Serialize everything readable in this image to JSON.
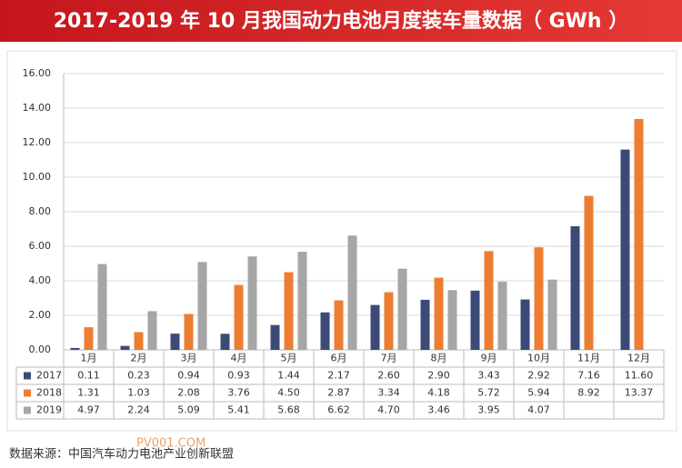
{
  "chart_data": {
    "type": "bar",
    "title": "2017-2019 年 10 月我国动力电池月度装车量数据（ GWh ）",
    "categories": [
      "1月",
      "2月",
      "3月",
      "4月",
      "5月",
      "6月",
      "7月",
      "8月",
      "9月",
      "10月",
      "11月",
      "12月"
    ],
    "series": [
      {
        "name": "2017",
        "color": "#3c4a78",
        "values": [
          0.11,
          0.23,
          0.94,
          0.93,
          1.44,
          2.17,
          2.6,
          2.9,
          3.43,
          2.92,
          7.16,
          11.6
        ],
        "value_labels": [
          "0.11",
          "0.23",
          "0.94",
          "0.93",
          "1.44",
          "2.17",
          "2.60",
          "2.90",
          "3.43",
          "2.92",
          "7.16",
          "11.60"
        ]
      },
      {
        "name": "2018",
        "color": "#ed7d31",
        "values": [
          1.31,
          1.03,
          2.08,
          3.76,
          4.5,
          2.87,
          3.34,
          4.18,
          5.72,
          5.94,
          8.92,
          13.37
        ],
        "value_labels": [
          "1.31",
          "1.03",
          "2.08",
          "3.76",
          "4.50",
          "2.87",
          "3.34",
          "4.18",
          "5.72",
          "5.94",
          "8.92",
          "13.37"
        ]
      },
      {
        "name": "2019",
        "color": "#a6a6a6",
        "values": [
          4.97,
          2.24,
          5.09,
          5.41,
          5.68,
          6.62,
          4.7,
          3.46,
          3.95,
          4.07,
          null,
          null
        ],
        "value_labels": [
          "4.97",
          "2.24",
          "5.09",
          "5.41",
          "5.68",
          "6.62",
          "4.70",
          "3.46",
          "3.95",
          "4.07",
          null,
          null
        ]
      }
    ],
    "ylim": [
      0,
      16
    ],
    "yticks": [
      {
        "value": 0,
        "label": "0.00"
      },
      {
        "value": 2,
        "label": "2.00"
      },
      {
        "value": 4,
        "label": "4.00"
      },
      {
        "value": 6,
        "label": "6.00"
      },
      {
        "value": 8,
        "label": "8.00"
      },
      {
        "value": 10,
        "label": "10.00"
      },
      {
        "value": 12,
        "label": "12.00"
      },
      {
        "value": 14,
        "label": "14.00"
      },
      {
        "value": 16,
        "label": "16.00"
      }
    ],
    "grid": true,
    "source": "数据来源：中国汽车动力电池产业创新联盟",
    "watermark": "PV001.COM"
  }
}
